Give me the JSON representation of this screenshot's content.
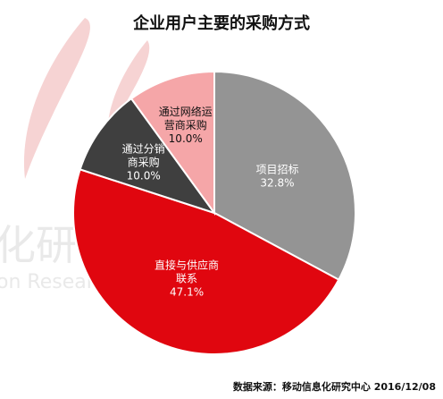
{
  "title": "企业用户主要的采购方式",
  "source": "数据来源：移动信息化研究中心 2016/12/08",
  "chart_data": {
    "type": "pie",
    "title": "企业用户主要的采购方式",
    "slices": [
      {
        "label_lines": [
          "项目招标"
        ],
        "pct_label": "32.8%",
        "value": 32.8,
        "color": "#949494",
        "text_color": "#ffffff"
      },
      {
        "label_lines": [
          "直接与供应商",
          "联系"
        ],
        "pct_label": "47.1%",
        "value": 47.1,
        "color": "#e0060f",
        "text_color": "#ffffff"
      },
      {
        "label_lines": [
          "通过分销",
          "商采购"
        ],
        "pct_label": "10.0%",
        "value": 10.0,
        "color": "#3f3f3f",
        "text_color": "#ffffff"
      },
      {
        "label_lines": [
          "通过网络运",
          "营商采购"
        ],
        "pct_label": "10.0%",
        "value": 10.0,
        "color": "#f5a6a8",
        "text_color": "#111111"
      }
    ],
    "start": "12 o'clock",
    "direction": "clockwise",
    "legend": "none"
  }
}
